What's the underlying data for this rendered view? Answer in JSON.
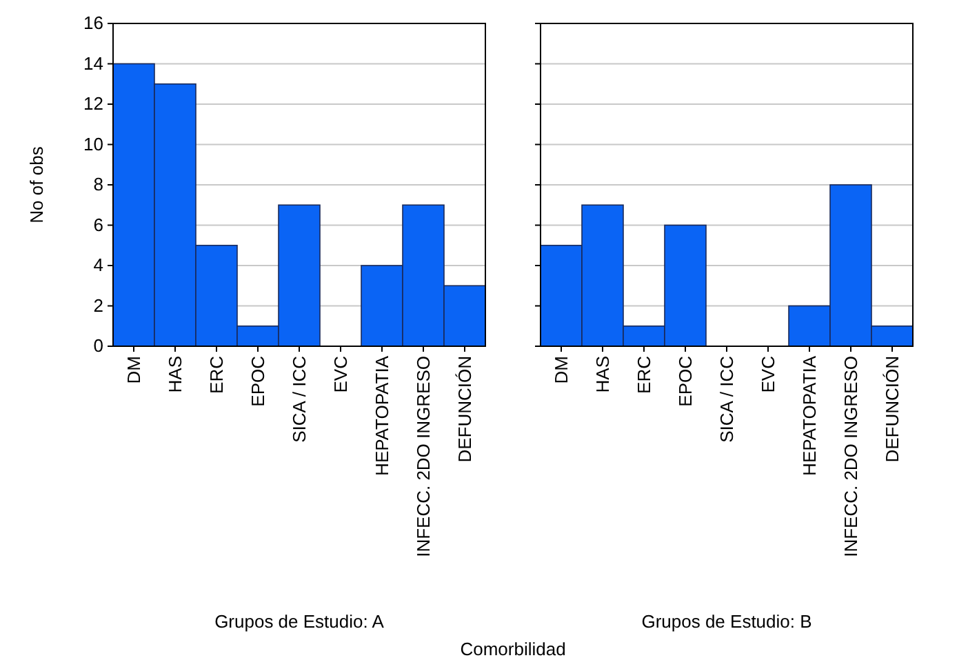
{
  "chart_data": [
    {
      "type": "bar",
      "categories": [
        "DM",
        "HAS",
        "ERC",
        "EPOC",
        "SICA / ICC",
        "EVC",
        "HEPATOPATIA",
        "INFECC. 2DO INGRESO",
        "DEFUNCIÓN"
      ],
      "values": [
        14,
        13,
        5,
        1,
        7,
        0,
        4,
        7,
        3
      ],
      "color": "#0a64f5",
      "ylim": [
        0,
        16
      ],
      "yticks": [
        0,
        2,
        4,
        6,
        8,
        10,
        12,
        14,
        16
      ],
      "grid": "y",
      "ylabel": "No of obs",
      "xlabel": "Grupos de Estudio: A",
      "annotations": [
        "Comorbilidad"
      ]
    },
    {
      "type": "bar",
      "categories": [
        "DM",
        "HAS",
        "ERC",
        "EPOC",
        "SICA / ICC",
        "EVC",
        "HEPATOPATIA",
        "INFECC. 2DO INGRESO",
        "DEFUNCIÓN"
      ],
      "values": [
        5,
        7,
        1,
        6,
        0,
        0,
        2,
        8,
        1
      ],
      "color": "#0a64f5",
      "ylim": [
        0,
        16
      ],
      "yticks": [
        0,
        2,
        4,
        6,
        8,
        10,
        12,
        14,
        16
      ],
      "grid": "y",
      "tick_labels": "x",
      "xlabel": "Grupos de Estudio: B"
    }
  ]
}
